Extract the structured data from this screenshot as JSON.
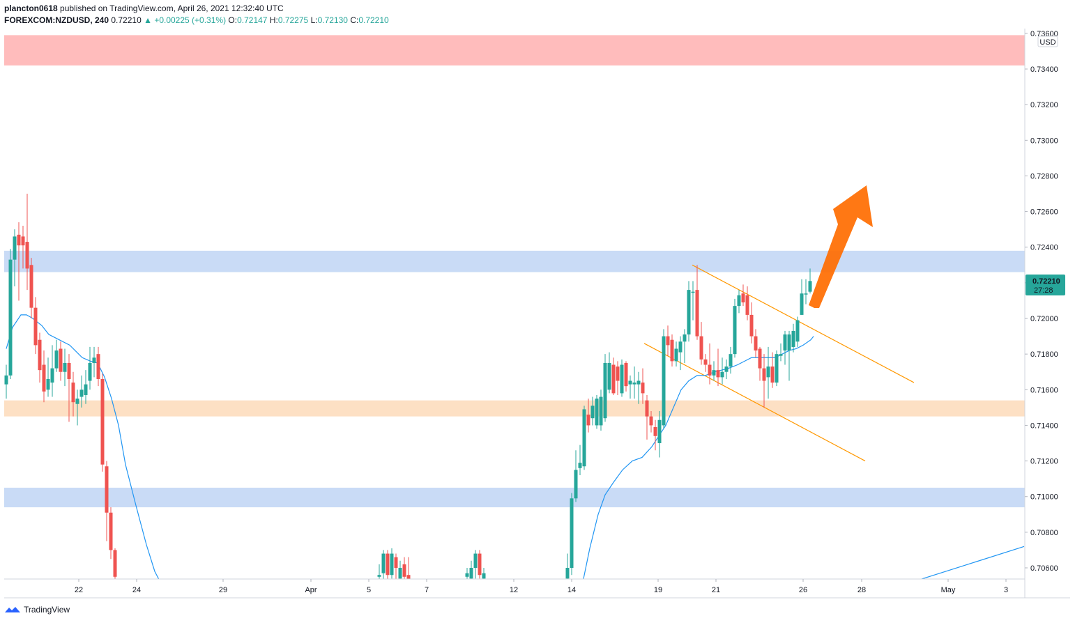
{
  "header": {
    "user": "plancton0618",
    "published": "published on TradingView.com, April 26, 2021 12:32:40 UTC",
    "symbol": "FOREXCOM:NZDUSD, 240",
    "last": "0.72210",
    "change": "▲ +0.00225 (+0.31%)",
    "o_label": "O:",
    "o_value": "0.72147",
    "h_label": "H:",
    "h_value": "0.72275",
    "l_label": "L:",
    "l_value": "0.72130",
    "c_label": "C:",
    "c_value": "0.72210"
  },
  "footer": {
    "brand": "TradingView",
    "logo_icon": "tradingview-logo-icon"
  },
  "colors": {
    "up": "#26a69a",
    "down": "#ef5350",
    "ma": "#2196f3",
    "channel": "#ff9800",
    "arrow": "#ff6d00",
    "resistance_zone": "#ffbcbc",
    "blue_zone": "#c9dbf6",
    "orange_zone": "#fde0c4"
  },
  "chart_data": {
    "type": "candlestick",
    "currency": "USD",
    "price_label": "0.72210",
    "countdown": "27:28",
    "y_ticks": [
      "0.73600",
      "0.73400",
      "0.73200",
      "0.73000",
      "0.72800",
      "0.72600",
      "0.72400",
      "0.72200",
      "0.72000",
      "0.71800",
      "0.71600",
      "0.71400",
      "0.71200",
      "0.71000",
      "0.70800",
      "0.70600"
    ],
    "x_ticks": [
      "22",
      "24",
      "29",
      "Apr",
      "5",
      "7",
      "12",
      "14",
      "19",
      "21",
      "26",
      "28",
      "May",
      "3"
    ],
    "ylim": [
      0.7052,
      0.7362
    ],
    "zones": [
      {
        "name": "resistance-zone",
        "low": 0.7342,
        "high": 0.7359,
        "color": "#ffbcbc"
      },
      {
        "name": "upper-blue-zone",
        "low": 0.7226,
        "high": 0.7238,
        "color": "#c9dbf6"
      },
      {
        "name": "orange-support-zone",
        "low": 0.7145,
        "high": 0.7154,
        "color": "#fde0c4"
      },
      {
        "name": "lower-blue-zone",
        "low": 0.7094,
        "high": 0.7105,
        "color": "#c9dbf6"
      }
    ],
    "channel_lines": [
      {
        "name": "channel-upper-line",
        "p1": [
          993,
          0.723
        ],
        "p2": [
          1311,
          0.7164
        ]
      },
      {
        "name": "channel-lower-line",
        "p1": [
          924,
          0.7186
        ],
        "p2": [
          1241,
          0.712
        ]
      }
    ],
    "candles_a": [
      [
        0.7163,
        0.7168,
        0.7155,
        0.7174
      ],
      [
        0.7168,
        0.7233,
        0.7166,
        0.7239
      ],
      [
        0.7233,
        0.7246,
        0.7218,
        0.725
      ],
      [
        0.7247,
        0.7241,
        0.721,
        0.7254
      ],
      [
        0.7246,
        0.7241,
        0.7228,
        0.7252
      ],
      [
        0.7243,
        0.7228,
        0.7216,
        0.727
      ],
      [
        0.723,
        0.7206,
        0.72,
        0.7234
      ],
      [
        0.7206,
        0.7185,
        0.718,
        0.7212
      ],
      [
        0.7188,
        0.7171,
        0.7164,
        0.7192
      ],
      [
        0.7174,
        0.7159,
        0.7153,
        0.7182
      ],
      [
        0.716,
        0.7166,
        0.7156,
        0.7178
      ],
      [
        0.7164,
        0.7172,
        0.7156,
        0.7185
      ],
      [
        0.7172,
        0.7182,
        0.717,
        0.7188
      ],
      [
        0.7183,
        0.717,
        0.7165,
        0.7187
      ],
      [
        0.717,
        0.7175,
        0.7162,
        0.7183
      ],
      [
        0.7175,
        0.7166,
        0.7142,
        0.718
      ],
      [
        0.7164,
        0.7153,
        0.7145,
        0.717
      ],
      [
        0.7152,
        0.7155,
        0.714,
        0.716
      ],
      [
        0.7156,
        0.716,
        0.715,
        0.7168
      ],
      [
        0.7157,
        0.7163,
        0.7152,
        0.7171
      ],
      [
        0.7165,
        0.7175,
        0.716,
        0.7184
      ],
      [
        0.7175,
        0.7178,
        0.7167,
        0.7184
      ],
      [
        0.718,
        0.7166,
        0.7162,
        0.7184
      ],
      [
        0.7166,
        0.7118,
        0.7114,
        0.7169
      ],
      [
        0.7117,
        0.7091,
        0.7075,
        0.712
      ],
      [
        0.7091,
        0.707,
        0.7065,
        0.7094
      ],
      [
        0.707,
        0.7055,
        0.705,
        0.7071
      ]
    ],
    "candles_b": [
      [
        0.7055,
        0.7056,
        0.7052,
        0.7062
      ],
      [
        0.7057,
        0.7068,
        0.7052,
        0.707
      ],
      [
        0.7068,
        0.7056,
        0.7053,
        0.707
      ],
      [
        0.7056,
        0.7068,
        0.7054,
        0.7071
      ],
      [
        0.7066,
        0.706,
        0.7053,
        0.7068
      ],
      [
        0.7054,
        0.706,
        0.7051,
        0.7064
      ],
      [
        0.7062,
        0.7055,
        0.7052,
        0.7066
      ],
      [
        0.7056,
        0.7052,
        0.7048,
        0.7066
      ]
    ],
    "candles_c": [
      [
        0.7055,
        0.7057,
        0.7052,
        0.706
      ],
      [
        0.7054,
        0.706,
        0.7051,
        0.7064
      ],
      [
        0.706,
        0.7068,
        0.7054,
        0.707
      ],
      [
        0.7068,
        0.7056,
        0.7054,
        0.707
      ],
      [
        0.7054,
        0.7057,
        0.7051,
        0.706
      ]
    ],
    "candles_d": [
      [
        0.7054,
        0.706,
        0.7051,
        0.7068
      ],
      [
        0.706,
        0.7099,
        0.7056,
        0.7102
      ],
      [
        0.7099,
        0.7115,
        0.7097,
        0.7126
      ],
      [
        0.7116,
        0.7119,
        0.7112,
        0.7129
      ],
      [
        0.7117,
        0.7149,
        0.7115,
        0.7151
      ],
      [
        0.7146,
        0.714,
        0.7136,
        0.7155
      ],
      [
        0.7144,
        0.7151,
        0.714,
        0.7156
      ],
      [
        0.714,
        0.7155,
        0.7138,
        0.7157
      ],
      [
        0.714,
        0.7156,
        0.7137,
        0.716
      ],
      [
        0.7144,
        0.7175,
        0.7142,
        0.718
      ],
      [
        0.716,
        0.7175,
        0.7158,
        0.7181
      ],
      [
        0.7174,
        0.7158,
        0.7157,
        0.7178
      ],
      [
        0.7173,
        0.7165,
        0.7157,
        0.7176
      ],
      [
        0.7158,
        0.7174,
        0.7156,
        0.7177
      ],
      [
        0.7175,
        0.7162,
        0.7159,
        0.7176
      ],
      [
        0.7163,
        0.7165,
        0.7155,
        0.7168
      ],
      [
        0.7163,
        0.7164,
        0.7155,
        0.7173
      ],
      [
        0.7163,
        0.7165,
        0.7152,
        0.717
      ],
      [
        0.7164,
        0.7158,
        0.7152,
        0.7172
      ],
      [
        0.7154,
        0.7145,
        0.7132,
        0.7157
      ],
      [
        0.7145,
        0.714,
        0.7136,
        0.7148
      ],
      [
        0.7139,
        0.7134,
        0.7126,
        0.7143
      ],
      [
        0.713,
        0.7143,
        0.7122,
        0.7148
      ],
      [
        0.714,
        0.719,
        0.7138,
        0.7194
      ],
      [
        0.719,
        0.7185,
        0.7179,
        0.7196
      ],
      [
        0.7188,
        0.7176,
        0.7173,
        0.7191
      ],
      [
        0.7176,
        0.7183,
        0.7173,
        0.7187
      ],
      [
        0.7181,
        0.7187,
        0.7171,
        0.719
      ],
      [
        0.7187,
        0.7191,
        0.7175,
        0.7194
      ],
      [
        0.7191,
        0.7216,
        0.7187,
        0.7221
      ],
      [
        0.7215,
        0.7215,
        0.7199,
        0.7221
      ],
      [
        0.7216,
        0.719,
        0.7188,
        0.723
      ],
      [
        0.719,
        0.7177,
        0.7174,
        0.7198
      ],
      [
        0.7177,
        0.7174,
        0.717,
        0.718
      ],
      [
        0.7174,
        0.7168,
        0.7163,
        0.7186
      ],
      [
        0.7168,
        0.7171,
        0.7165,
        0.7176
      ],
      [
        0.7171,
        0.7167,
        0.7162,
        0.7183
      ],
      [
        0.7167,
        0.717,
        0.7163,
        0.7178
      ],
      [
        0.717,
        0.7173,
        0.7166,
        0.7177
      ],
      [
        0.7173,
        0.718,
        0.7169,
        0.7184
      ],
      [
        0.718,
        0.7207,
        0.7178,
        0.7211
      ],
      [
        0.7207,
        0.7213,
        0.7203,
        0.7216
      ],
      [
        0.7214,
        0.7209,
        0.7207,
        0.7219
      ],
      [
        0.7213,
        0.7202,
        0.7199,
        0.7218
      ],
      [
        0.7202,
        0.719,
        0.7186,
        0.7209
      ],
      [
        0.719,
        0.7182,
        0.7178,
        0.7194
      ],
      [
        0.7183,
        0.7172,
        0.7165,
        0.7184
      ],
      [
        0.7172,
        0.7165,
        0.715,
        0.718
      ],
      [
        0.7167,
        0.7173,
        0.7155,
        0.7184
      ],
      [
        0.7173,
        0.7164,
        0.7161,
        0.7181
      ],
      [
        0.7164,
        0.718,
        0.7162,
        0.7182
      ],
      [
        0.7179,
        0.718,
        0.7176,
        0.7186
      ],
      [
        0.7182,
        0.7191,
        0.7174,
        0.7193
      ],
      [
        0.7182,
        0.7191,
        0.7165,
        0.7193
      ],
      [
        0.7184,
        0.7193,
        0.7181,
        0.7197
      ],
      [
        0.7187,
        0.7199,
        0.7184,
        0.7201
      ],
      [
        0.7202,
        0.7214,
        0.7202,
        0.7222
      ],
      [
        0.7214,
        0.7214,
        0.7208,
        0.7222
      ],
      [
        0.7215,
        0.7221,
        0.7214,
        0.7228
      ]
    ],
    "ma_points": [
      [
        9,
        0.7183
      ],
      [
        18,
        0.7195
      ],
      [
        30,
        0.7202
      ],
      [
        38,
        0.7202
      ],
      [
        47,
        0.72
      ],
      [
        60,
        0.7196
      ],
      [
        70,
        0.7191
      ],
      [
        85,
        0.7188
      ],
      [
        100,
        0.7185
      ],
      [
        118,
        0.7178
      ],
      [
        130,
        0.7176
      ],
      [
        140,
        0.7175
      ],
      [
        150,
        0.7167
      ],
      [
        160,
        0.7155
      ],
      [
        170,
        0.714
      ],
      [
        180,
        0.7118
      ],
      [
        195,
        0.7095
      ],
      [
        210,
        0.7073
      ],
      [
        222,
        0.7058
      ],
      [
        230,
        0.7052
      ],
      [
        836,
        0.7052
      ],
      [
        846,
        0.7071
      ],
      [
        858,
        0.709
      ],
      [
        868,
        0.7101
      ],
      [
        880,
        0.7108
      ],
      [
        893,
        0.7115
      ],
      [
        907,
        0.712
      ],
      [
        921,
        0.7122
      ],
      [
        935,
        0.7128
      ],
      [
        945,
        0.7134
      ],
      [
        955,
        0.714
      ],
      [
        966,
        0.715
      ],
      [
        977,
        0.716
      ],
      [
        988,
        0.7165
      ],
      [
        1000,
        0.7168
      ],
      [
        1012,
        0.7168
      ],
      [
        1025,
        0.717
      ],
      [
        1035,
        0.7171
      ],
      [
        1045,
        0.7172
      ],
      [
        1058,
        0.7174
      ],
      [
        1068,
        0.7176
      ],
      [
        1078,
        0.7178
      ],
      [
        1090,
        0.7178
      ],
      [
        1102,
        0.7178
      ],
      [
        1112,
        0.7178
      ],
      [
        1122,
        0.718
      ],
      [
        1132,
        0.7182
      ],
      [
        1142,
        0.7183
      ],
      [
        1152,
        0.7185
      ],
      [
        1163,
        0.7188
      ],
      [
        1167,
        0.719
      ]
    ],
    "ma_tail_points": [
      [
        1308,
        0.7052
      ],
      [
        1469,
        0.7072
      ]
    ]
  }
}
